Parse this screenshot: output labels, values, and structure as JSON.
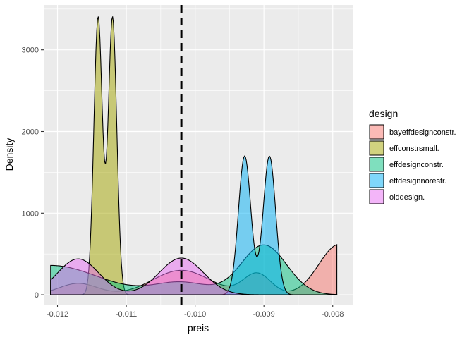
{
  "chart_data": {
    "type": "density",
    "title": "",
    "xlabel": "preis",
    "ylabel": "Density",
    "xlim": [
      -0.0122,
      -0.0077
    ],
    "ylim": [
      -120,
      3550
    ],
    "x_ticks": [
      -0.012,
      -0.011,
      -0.01,
      -0.009,
      -0.008
    ],
    "x_tick_labels": [
      "-0.012",
      "-0.011",
      "-0.010",
      "-0.009",
      "-0.008"
    ],
    "y_ticks": [
      0,
      1000,
      2000,
      3000
    ],
    "y_tick_labels": [
      "0",
      "1000",
      "2000",
      "3000"
    ],
    "vline": {
      "x": -0.0102,
      "style": "dashed",
      "color": "#000000"
    },
    "legend": {
      "title": "design",
      "position": "right"
    },
    "x_grid": [
      -0.0121,
      -0.00794
    ],
    "series": [
      {
        "name": "bayeffdesignconstr.",
        "color": "#F8766D",
        "peaks": [
          {
            "mu": -0.0117,
            "sigma": 0.00028,
            "h": 140
          },
          {
            "mu": -0.0102,
            "sigma": 0.00042,
            "h": 300
          },
          {
            "mu": -0.0091,
            "sigma": 0.0002,
            "h": 260
          },
          {
            "mu": -0.0079,
            "sigma": 0.0003,
            "h": 620
          }
        ]
      },
      {
        "name": "effconstrsmall.",
        "color": "#A3A500",
        "peaks": [
          {
            "mu": -0.01141,
            "sigma": 6.17e-05,
            "h": 3400
          },
          {
            "mu": -0.0112,
            "sigma": 6.17e-05,
            "h": 3400
          }
        ]
      },
      {
        "name": "effdesignconstr.",
        "color": "#00BF7D",
        "peaks": [
          {
            "mu": -0.0121,
            "sigma": 0.0007,
            "h": 360
          },
          {
            "mu": -0.0102,
            "sigma": 0.0004,
            "h": 150
          },
          {
            "mu": -0.009,
            "sigma": 0.00033,
            "h": 610
          }
        ]
      },
      {
        "name": "effdesignnorestr.",
        "color": "#00B0F6",
        "peaks": [
          {
            "mu": -0.00928,
            "sigma": 9.03e-05,
            "h": 1700
          },
          {
            "mu": -0.00892,
            "sigma": 9.03e-05,
            "h": 1700
          }
        ]
      },
      {
        "name": "olddesign.",
        "color": "#E76BF3",
        "peaks": [
          {
            "mu": -0.0117,
            "sigma": 0.0003,
            "h": 440
          },
          {
            "mu": -0.0102,
            "sigma": 0.00032,
            "h": 450
          }
        ]
      }
    ]
  }
}
